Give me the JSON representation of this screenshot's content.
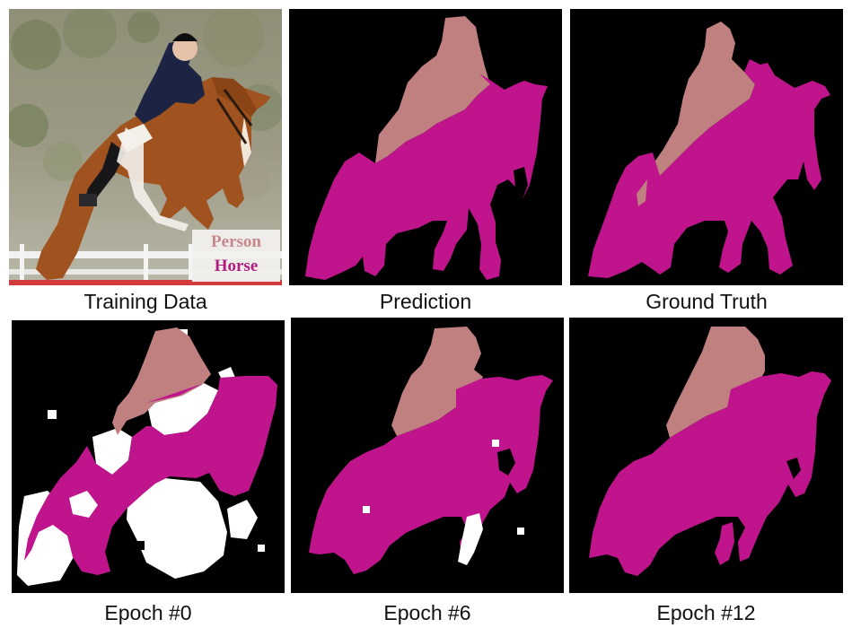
{
  "figure": {
    "captions": {
      "training": "Training Data",
      "prediction": "Prediction",
      "ground_truth": "Ground Truth",
      "epoch0": "Epoch #0",
      "epoch6": "Epoch #6",
      "epoch12": "Epoch #12"
    },
    "legend": {
      "person": "Person",
      "horse": "Horse"
    },
    "colors": {
      "person": "#c08080",
      "horse": "#c0148c",
      "background": "#000000",
      "unlabeled": "#ffffff",
      "legend_person": "#c8868a",
      "legend_horse": "#b0157f"
    }
  }
}
